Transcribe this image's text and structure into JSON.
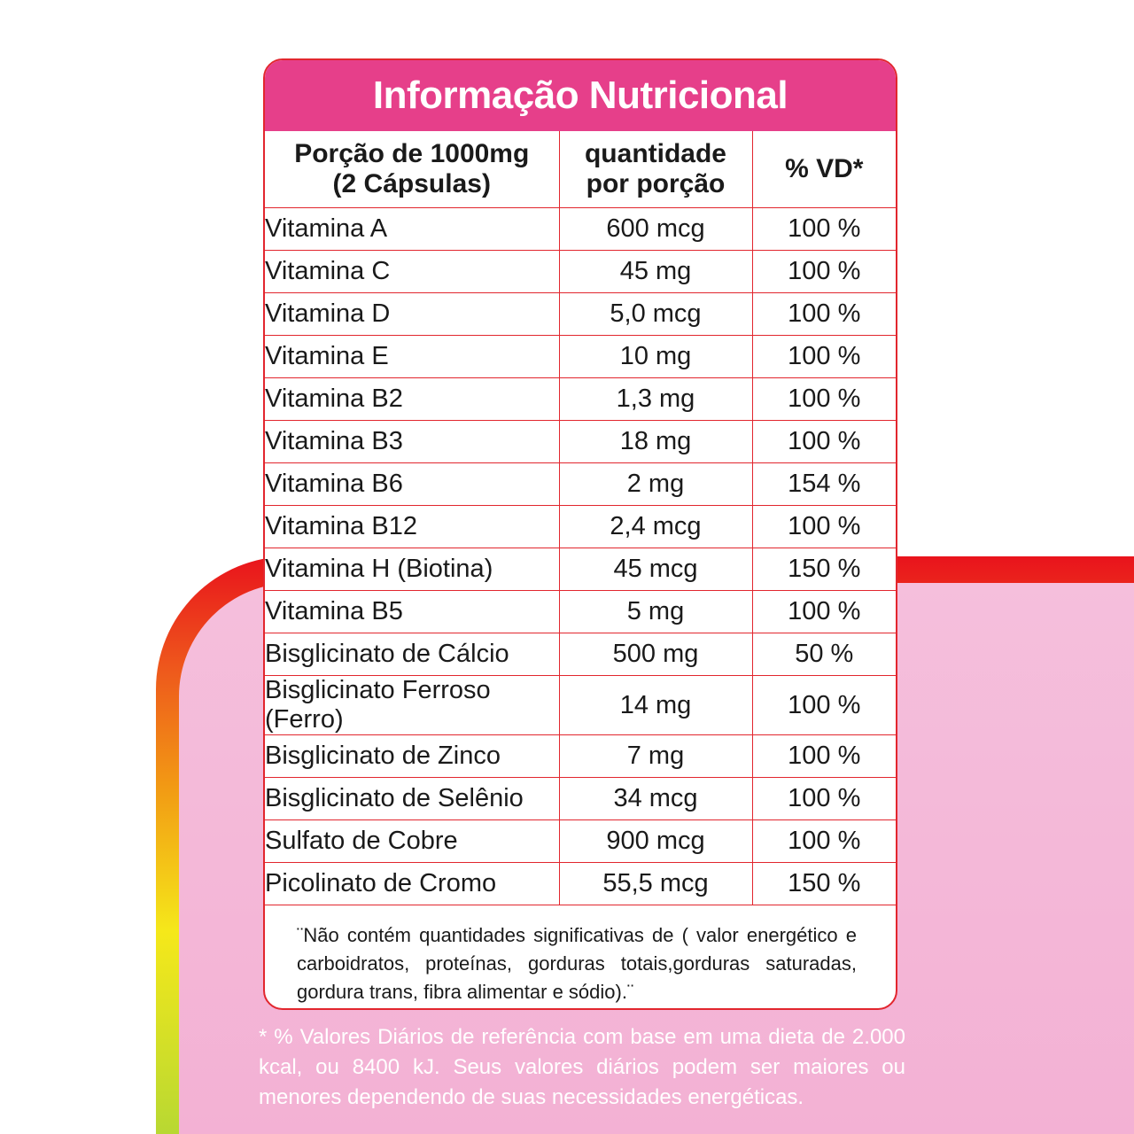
{
  "title": "Informação Nutricional",
  "header": {
    "portion_line1": "Porção de 1000mg",
    "portion_line2": "(2 Cápsulas)",
    "qty_line1": "quantidade",
    "qty_line2": "por porção",
    "dv": "% VD*"
  },
  "rows": [
    {
      "name": "Vitamina A",
      "amount": "600 mcg",
      "dv": "100 %"
    },
    {
      "name": "Vitamina C",
      "amount": "45 mg",
      "dv": "100 %"
    },
    {
      "name": "Vitamina D",
      "amount": "5,0 mcg",
      "dv": "100 %"
    },
    {
      "name": "Vitamina E",
      "amount": "10 mg",
      "dv": "100 %"
    },
    {
      "name": "Vitamina B2",
      "amount": "1,3 mg",
      "dv": "100 %"
    },
    {
      "name": "Vitamina B3",
      "amount": "18 mg",
      "dv": "100 %"
    },
    {
      "name": "Vitamina B6",
      "amount": "2 mg",
      "dv": "154 %"
    },
    {
      "name": "Vitamina B12",
      "amount": "2,4 mcg",
      "dv": "100 %"
    },
    {
      "name": "Vitamina H (Biotina)",
      "amount": "45 mcg",
      "dv": "150 %"
    },
    {
      "name": "Vitamina B5",
      "amount": "5 mg",
      "dv": "100 %"
    },
    {
      "name": "Bisglicinato de Cálcio",
      "amount": "500 mg",
      "dv": "50 %"
    },
    {
      "name": "Bisglicinato Ferroso (Ferro)",
      "amount": "14 mg",
      "dv": "100 %"
    },
    {
      "name": "Bisglicinato de Zinco",
      "amount": "7 mg",
      "dv": "100 %"
    },
    {
      "name": "Bisglicinato de Selênio",
      "amount": "34 mcg",
      "dv": "100 %"
    },
    {
      "name": "Sulfato de Cobre",
      "amount": "900 mcg",
      "dv": "100 %"
    },
    {
      "name": "Picolinato de Cromo",
      "amount": "55,5 mcg",
      "dv": "150 %"
    }
  ],
  "footnote": "¨Não contém quantidades significativas de ( valor energético e carboidratos, proteínas, gorduras totais,gorduras saturadas, gordura trans,  fibra alimentar e sódio).¨",
  "reference_note": "* % Valores Diários de referência com base em uma dieta de 2.000 kcal, ou 8400 kJ. Seus valores diários podem ser maiores ou menores dependendo de suas necessidades energéticas.",
  "colors": {
    "title_bg": "#e63f8a",
    "border_red": "#e2262e",
    "background_pink": "#f3b1d4"
  }
}
